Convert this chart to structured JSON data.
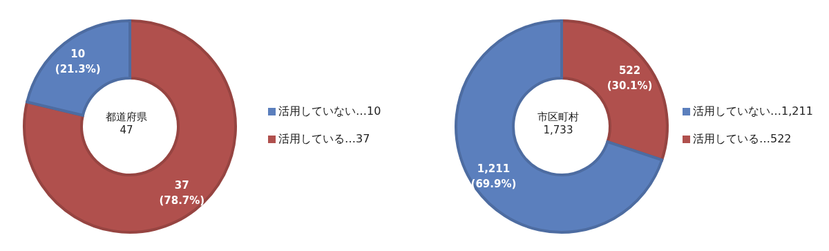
{
  "chart_data": [
    {
      "type": "donut",
      "categories": [
        "活用している…37",
        "活用していない…10"
      ],
      "values": [
        37,
        10
      ],
      "colors": [
        "#b0504d",
        "#5b7fbd"
      ],
      "value_labels": [
        "37\n(78.7%)",
        "10\n(21.3%)"
      ],
      "annotations": [
        "都道府県\n47"
      ],
      "legend": "right"
    },
    {
      "type": "donut",
      "categories": [
        "活用している…522",
        "活用していない…1,211"
      ],
      "values": [
        522,
        1211
      ],
      "colors": [
        "#b0504d",
        "#5b7fbd"
      ],
      "value_labels": [
        "522\n(30.1%)",
        "1,211\n(69.9%)"
      ],
      "annotations": [
        "市区町村\n1,733"
      ],
      "legend": "right"
    }
  ]
}
